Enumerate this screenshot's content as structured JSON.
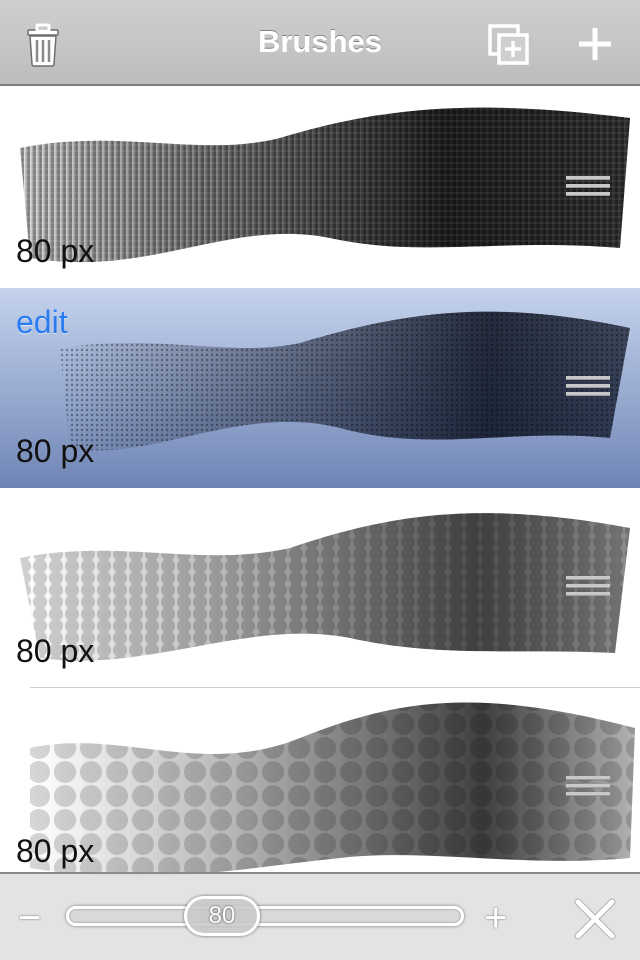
{
  "header": {
    "title": "Brushes",
    "delete_icon": "trash-icon",
    "duplicate_icon": "duplicate-icon",
    "add_icon": "plus-icon"
  },
  "brushes": [
    {
      "size_label": "80 px",
      "style": "hatched",
      "selected": false
    },
    {
      "size_label": "80 px",
      "style": "speckled",
      "selected": true,
      "edit_label": "edit"
    },
    {
      "size_label": "80 px",
      "style": "dotted",
      "selected": false
    },
    {
      "size_label": "80 px",
      "style": "soft-circles",
      "selected": false
    }
  ],
  "bottom": {
    "minus_label": "−",
    "plus_label": "+",
    "slider_value": "80",
    "close_icon": "close-icon"
  },
  "colors": {
    "toolbar": "#c6c6c6",
    "selected_row": "#96a9cf",
    "edit_text": "#2b7cf0"
  }
}
